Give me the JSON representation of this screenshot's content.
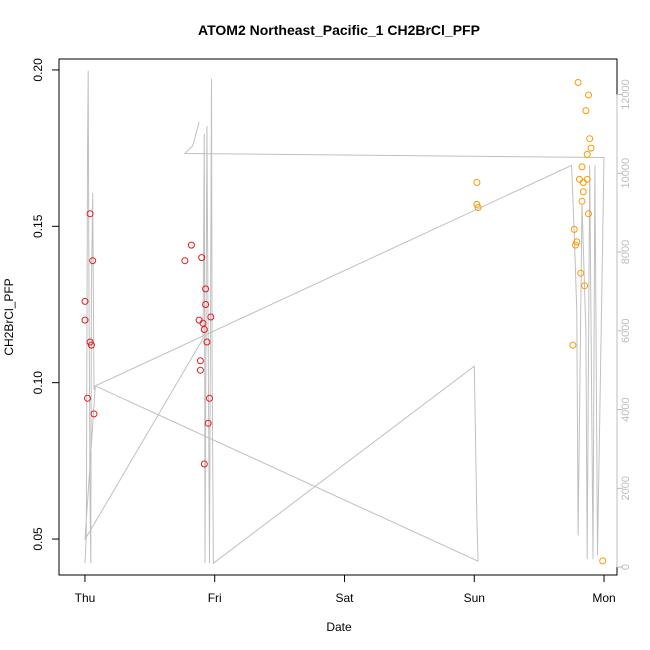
{
  "chart_data": {
    "type": "scatter",
    "title": "ATOM2 Northeast_Pacific_1 CH2BrCl_PFP",
    "xlabel": "Date",
    "ylabel": "CH2BrCl_PFP",
    "x_ticks": [
      {
        "label": "Thu",
        "day": 0
      },
      {
        "label": "Fri",
        "day": 1
      },
      {
        "label": "Sat",
        "day": 2
      },
      {
        "label": "Sun",
        "day": 3
      },
      {
        "label": "Mon",
        "day": 4
      }
    ],
    "xlim": [
      -0.2,
      4.1
    ],
    "ylim": [
      0.0385,
      0.2035
    ],
    "y_ticks": [
      0.05,
      0.1,
      0.15,
      0.2
    ],
    "y_tick_labels": [
      "0.05",
      "0.10",
      "0.15",
      "0.20"
    ],
    "y2_ticks": [
      0,
      2000,
      4000,
      6000,
      8000,
      10000,
      12000
    ],
    "y2_tick_labels": [
      "0",
      "2000",
      "4000",
      "6000",
      "8000",
      "10000",
      "12000"
    ],
    "y2lim": [
      -200,
      12900
    ],
    "colors": {
      "red": "#e41a1c",
      "orange": "#ff9900",
      "altitude": "#c0c0c0"
    },
    "series": [
      {
        "color": "red",
        "points": [
          [
            0.0,
            0.126
          ],
          [
            0.0,
            0.12
          ],
          [
            0.02,
            0.095
          ],
          [
            0.04,
            0.154
          ],
          [
            0.04,
            0.113
          ],
          [
            0.05,
            0.112
          ],
          [
            0.06,
            0.139
          ],
          [
            0.07,
            0.09
          ],
          [
            0.77,
            0.139
          ],
          [
            0.82,
            0.144
          ],
          [
            0.88,
            0.12
          ],
          [
            0.89,
            0.107
          ],
          [
            0.89,
            0.104
          ],
          [
            0.9,
            0.14
          ],
          [
            0.91,
            0.119
          ],
          [
            0.92,
            0.117
          ],
          [
            0.92,
            0.074
          ],
          [
            0.93,
            0.125
          ],
          [
            0.93,
            0.13
          ],
          [
            0.94,
            0.113
          ],
          [
            0.95,
            0.087
          ],
          [
            0.96,
            0.095
          ],
          [
            0.97,
            0.121
          ]
        ]
      },
      {
        "color": "orange",
        "points": [
          [
            3.02,
            0.164
          ],
          [
            3.02,
            0.157
          ],
          [
            3.03,
            0.156
          ],
          [
            3.76,
            0.112
          ],
          [
            3.77,
            0.149
          ],
          [
            3.78,
            0.144
          ],
          [
            3.79,
            0.145
          ],
          [
            3.8,
            0.196
          ],
          [
            3.81,
            0.165
          ],
          [
            3.82,
            0.135
          ],
          [
            3.83,
            0.169
          ],
          [
            3.83,
            0.158
          ],
          [
            3.84,
            0.161
          ],
          [
            3.84,
            0.164
          ],
          [
            3.85,
            0.131
          ],
          [
            3.86,
            0.187
          ],
          [
            3.87,
            0.173
          ],
          [
            3.87,
            0.165
          ],
          [
            3.88,
            0.192
          ],
          [
            3.88,
            0.154
          ],
          [
            3.89,
            0.178
          ],
          [
            3.9,
            0.175
          ],
          [
            3.99,
            0.043
          ]
        ]
      }
    ],
    "altitude_line": [
      [
        0.0,
        100
      ],
      [
        0.01,
        800
      ],
      [
        0.02,
        10500
      ],
      [
        0.025,
        12600
      ],
      [
        0.03,
        8000
      ],
      [
        0.04,
        1500
      ],
      [
        0.045,
        100
      ],
      [
        0.05,
        7000
      ],
      [
        0.06,
        9500
      ],
      [
        0.07,
        4500
      ],
      [
        0.08,
        4600
      ],
      [
        0.0,
        700
      ],
      [
        0.91,
        5800
      ],
      [
        0.92,
        11000
      ],
      [
        0.925,
        100
      ],
      [
        0.94,
        11200
      ],
      [
        0.96,
        100
      ],
      [
        0.975,
        12400
      ],
      [
        0.98,
        5200
      ],
      [
        0.99,
        100
      ],
      [
        3.0,
        5100
      ],
      [
        3.02,
        1200
      ],
      [
        3.03,
        150
      ],
      [
        0.08,
        4600
      ],
      [
        3.75,
        10200
      ],
      [
        3.77,
        8500
      ],
      [
        3.79,
        6500
      ],
      [
        3.8,
        800
      ],
      [
        3.83,
        9200
      ],
      [
        3.86,
        6000
      ],
      [
        3.87,
        200
      ],
      [
        3.89,
        10200
      ],
      [
        3.9,
        6200
      ],
      [
        3.915,
        200
      ],
      [
        3.93,
        10200
      ],
      [
        3.95,
        300
      ],
      [
        4.0,
        10400
      ],
      [
        0.77,
        10500
      ],
      [
        0.83,
        10700
      ],
      [
        0.88,
        11300
      ]
    ]
  }
}
